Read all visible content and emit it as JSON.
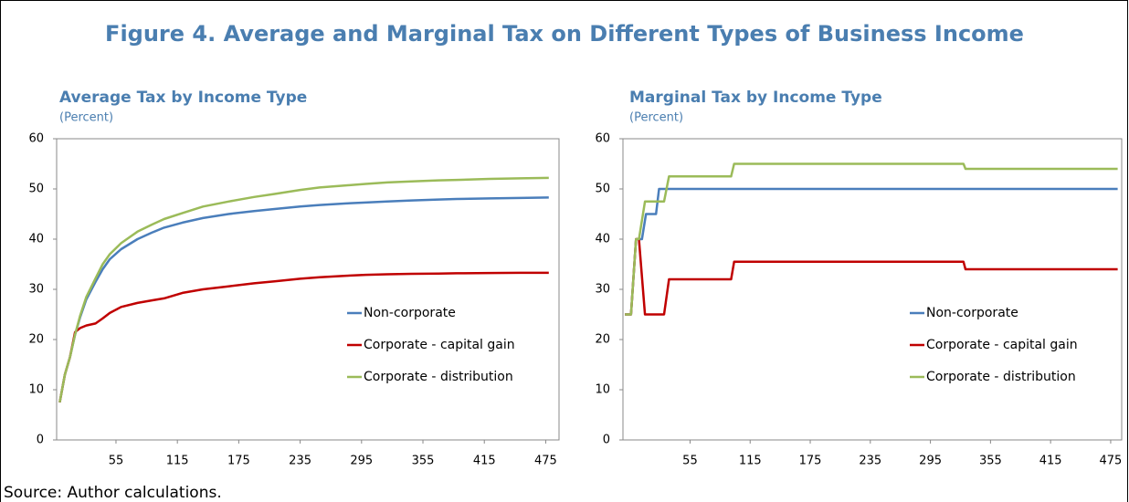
{
  "title": "Figure 4. Average and Marginal Tax on Different Types of Business Income",
  "source": "Source: Author calculations.",
  "chart_data": [
    {
      "type": "line",
      "title": "Average Tax by Income Type",
      "subtitle": "(Percent)",
      "xlim": [
        -3,
        488
      ],
      "xticks": [
        55,
        115,
        175,
        235,
        295,
        355,
        415,
        475
      ],
      "ylim": [
        0,
        60
      ],
      "yticks": [
        0,
        10,
        20,
        30,
        40,
        50,
        60
      ],
      "legend": "right",
      "x": [
        0,
        5,
        10,
        15,
        20,
        26,
        35,
        42,
        49,
        60,
        76,
        90,
        102,
        120,
        140,
        165,
        190,
        210,
        235,
        254,
        280,
        299,
        320,
        344,
        370,
        388,
        420,
        450,
        478
      ],
      "series": [
        {
          "name": "Non-corporate",
          "color": "#4a7ebb",
          "values": [
            7.5,
            13,
            16.5,
            21,
            24.5,
            28,
            31.5,
            34,
            36,
            38,
            40,
            41.3,
            42.3,
            43.3,
            44.2,
            45,
            45.6,
            46,
            46.5,
            46.8,
            47.1,
            47.3,
            47.5,
            47.7,
            47.9,
            48,
            48.1,
            48.2,
            48.3
          ]
        },
        {
          "name": "Corporate - capital gain",
          "color": "#c00000",
          "values": [
            7.5,
            13,
            16.5,
            21.5,
            22.3,
            22.8,
            23.2,
            24.2,
            25.3,
            26.5,
            27.3,
            27.8,
            28.2,
            29.3,
            30,
            30.6,
            31.2,
            31.6,
            32.1,
            32.4,
            32.7,
            32.9,
            33,
            33.1,
            33.15,
            33.2,
            33.25,
            33.3,
            33.3
          ]
        },
        {
          "name": "Corporate - distribution",
          "color": "#9bbb59",
          "values": [
            7.5,
            13,
            16.5,
            21,
            24.8,
            28.5,
            32.2,
            35,
            37,
            39.2,
            41.5,
            42.9,
            44,
            45.2,
            46.5,
            47.5,
            48.4,
            49,
            49.8,
            50.3,
            50.7,
            51,
            51.3,
            51.5,
            51.7,
            51.8,
            52,
            52.1,
            52.2
          ]
        }
      ]
    },
    {
      "type": "line",
      "title": "Marginal Tax by Income Type",
      "subtitle": "(Percent)",
      "xlim": [
        -12,
        486
      ],
      "xticks": [
        55,
        115,
        175,
        235,
        295,
        355,
        415,
        475
      ],
      "ylim": [
        0,
        60
      ],
      "yticks": [
        0,
        10,
        20,
        30,
        40,
        50,
        60
      ],
      "legend": "right",
      "series": [
        {
          "name": "Non-corporate",
          "color": "#4a7ebb",
          "x": [
            -10,
            -4,
            1,
            7,
            11,
            21,
            24,
            482
          ],
          "values": [
            25,
            25,
            40,
            40,
            45,
            45,
            50,
            50
          ]
        },
        {
          "name": "Corporate - capital gain",
          "color": "#c00000",
          "x": [
            -10,
            -4,
            1,
            4,
            10,
            29,
            34,
            96,
            99,
            328,
            330,
            482
          ],
          "values": [
            25,
            25,
            40,
            40,
            25,
            25,
            32,
            32,
            35.5,
            35.5,
            34,
            34
          ]
        },
        {
          "name": "Corporate - distribution",
          "color": "#9bbb59",
          "x": [
            -10,
            -4,
            1,
            4,
            10,
            29,
            34,
            96,
            99,
            328,
            330,
            482
          ],
          "values": [
            25,
            25,
            40,
            40,
            47.5,
            47.5,
            52.5,
            52.5,
            55,
            55,
            54,
            54
          ]
        }
      ]
    }
  ]
}
